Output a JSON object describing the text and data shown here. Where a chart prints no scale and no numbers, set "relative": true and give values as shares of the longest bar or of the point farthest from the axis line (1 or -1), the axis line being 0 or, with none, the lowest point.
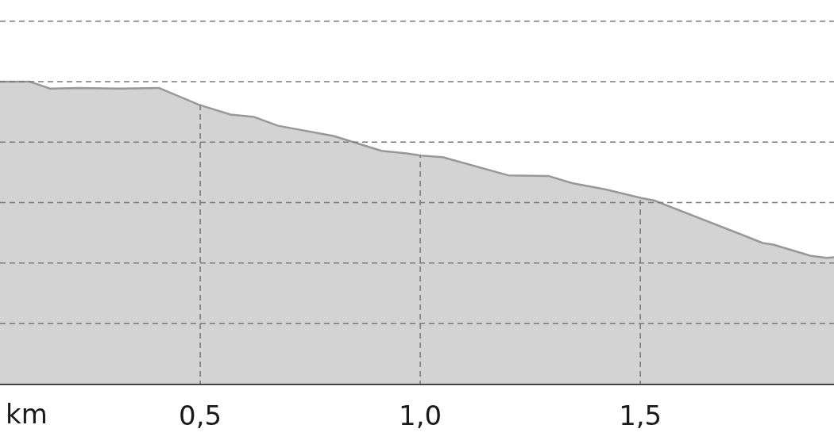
{
  "chart_data": {
    "type": "area",
    "xlabel": "km",
    "relative": true,
    "color": "#d3d3d3",
    "grid": true,
    "xlim": [
      0.045,
      1.94
    ],
    "xticks": [
      {
        "value": 0.5,
        "label": "0,5"
      },
      {
        "value": 1,
        "label": "1,0"
      },
      {
        "value": 1.5,
        "label": "1,5"
      }
    ],
    "x": [
      0.045,
      0.112,
      0.159,
      0.226,
      0.316,
      0.406,
      0.496,
      0.569,
      0.623,
      0.677,
      0.803,
      0.912,
      0.966,
      1.002,
      1.051,
      1.2,
      1.291,
      1.345,
      1.422,
      1.502,
      1.531,
      1.742,
      1.778,
      1.802,
      1.886,
      1.922,
      1.94
    ],
    "values": [
      1,
      1,
      0.977,
      0.979,
      0.977,
      0.979,
      0.924,
      0.891,
      0.883,
      0.854,
      0.82,
      0.771,
      0.763,
      0.755,
      0.75,
      0.69,
      0.688,
      0.664,
      0.643,
      0.615,
      0.607,
      0.487,
      0.466,
      0.461,
      0.424,
      0.417,
      0.419
    ]
  }
}
